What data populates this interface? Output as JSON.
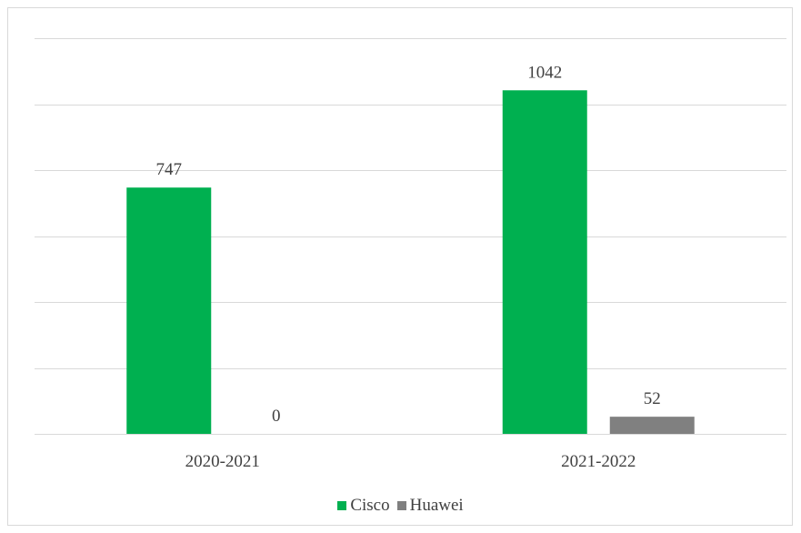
{
  "chart_data": {
    "type": "bar",
    "categories": [
      "2020-2021",
      "2021-2022"
    ],
    "series": [
      {
        "name": "Cisco",
        "values": [
          747,
          1042
        ],
        "color": "#00b050"
      },
      {
        "name": "Huawei",
        "values": [
          0,
          52
        ],
        "color": "#808080"
      }
    ],
    "ylim": [
      0,
      1200
    ],
    "y_gridline_step": 200,
    "y_tick_labels_shown": false,
    "grid": true,
    "gridline_color": "#d9d9d9",
    "legend_position": "bottom",
    "data_labels": true
  }
}
